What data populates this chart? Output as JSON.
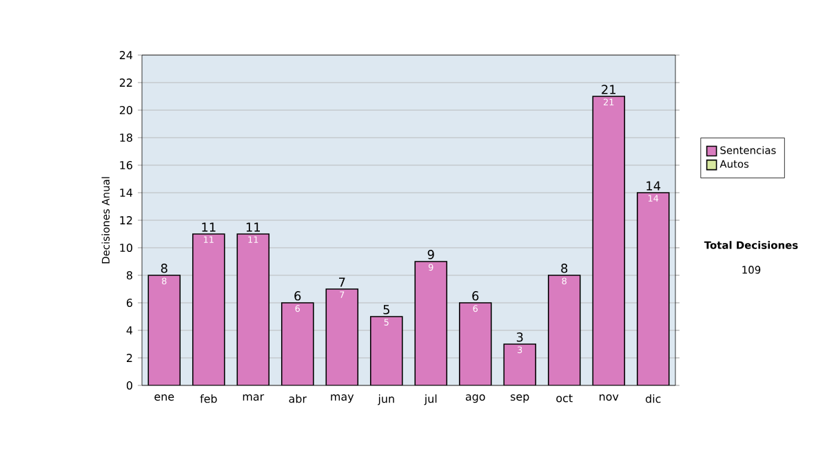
{
  "chart_data": {
    "type": "bar",
    "stacked": true,
    "ylabel": "Decisiones Anual",
    "categories": [
      "ene",
      "feb",
      "mar",
      "abr",
      "may",
      "jun",
      "jul",
      "ago",
      "sep",
      "oct",
      "nov",
      "dic"
    ],
    "series": [
      {
        "name": "Sentencias",
        "color": "#d97cbf",
        "values": [
          8,
          11,
          11,
          6,
          7,
          5,
          9,
          6,
          3,
          8,
          21,
          14
        ],
        "value_labels": [
          "8",
          "11",
          "11",
          "6",
          "7",
          "5",
          "9",
          "6",
          "3",
          "8",
          "21",
          "14"
        ]
      },
      {
        "name": "Autos",
        "color": "#d8e8a0",
        "values": [
          0,
          0,
          0,
          0,
          0,
          0,
          0,
          0,
          0,
          0,
          0,
          0
        ]
      }
    ],
    "totals": [
      "8",
      "11",
      "11",
      "6",
      "7",
      "5",
      "9",
      "6",
      "3",
      "8",
      "21",
      "14"
    ],
    "ylim": [
      0,
      24
    ],
    "yticks": [
      0,
      2,
      4,
      6,
      8,
      10,
      12,
      14,
      16,
      18,
      20,
      22,
      24
    ],
    "grid": "y",
    "legend": "right",
    "annotations": [
      "**Total Decisiones**",
      "109"
    ]
  }
}
